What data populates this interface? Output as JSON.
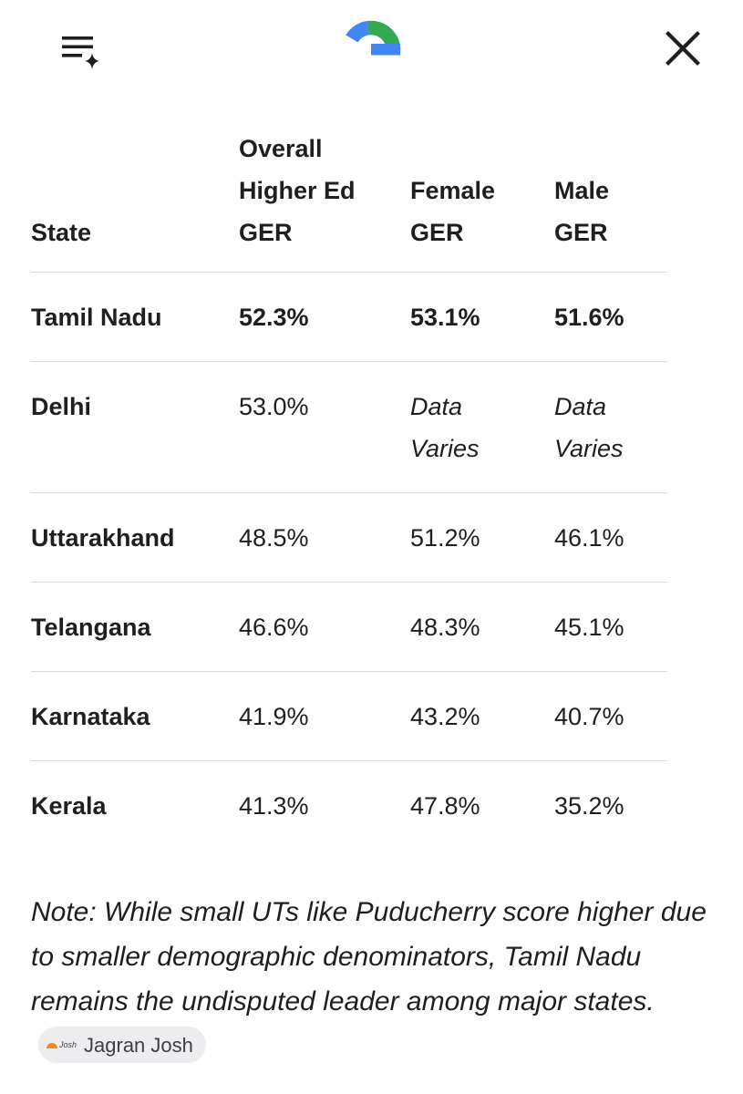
{
  "header": {
    "menu_icon": "menu-sparkle-icon",
    "logo_icon": "google-g-logo",
    "close_icon": "close-icon",
    "logo_colors": {
      "blue": "#4285F4",
      "red": "#EA4335",
      "yellow": "#FBBC05",
      "green": "#34A853"
    }
  },
  "table": {
    "headers": [
      [
        "State"
      ],
      [
        "Overall",
        "Higher Ed",
        "GER"
      ],
      [
        "Female",
        "GER"
      ],
      [
        "Male",
        "GER"
      ]
    ],
    "rows": [
      {
        "state": "Tamil Nadu",
        "overall": "52.3%",
        "female": "53.1%",
        "male": "51.6%"
      },
      {
        "state": "Delhi",
        "overall": "53.0%",
        "female": [
          "Data",
          "Varies"
        ],
        "male": [
          "Data",
          "Varies"
        ]
      },
      {
        "state": "Uttarakhand",
        "overall": "48.5%",
        "female": "51.2%",
        "male": "46.1%"
      },
      {
        "state": "Telangana",
        "overall": "46.6%",
        "female": "48.3%",
        "male": "45.1%"
      },
      {
        "state": "Karnataka",
        "overall": "41.9%",
        "female": "43.2%",
        "male": "40.7%"
      },
      {
        "state": "Kerala",
        "overall": "41.3%",
        "female": "47.8%",
        "male": "35.2%"
      }
    ]
  },
  "note": {
    "text": "Note: While small UTs like Puducherry score higher due to smaller demographic denominators, Tamil Nadu remains the undisputed leader among major states.",
    "source_chip": {
      "label": "Jagran Josh",
      "logo_text": "Josh",
      "icon": "jagran-josh-logo-icon"
    }
  }
}
